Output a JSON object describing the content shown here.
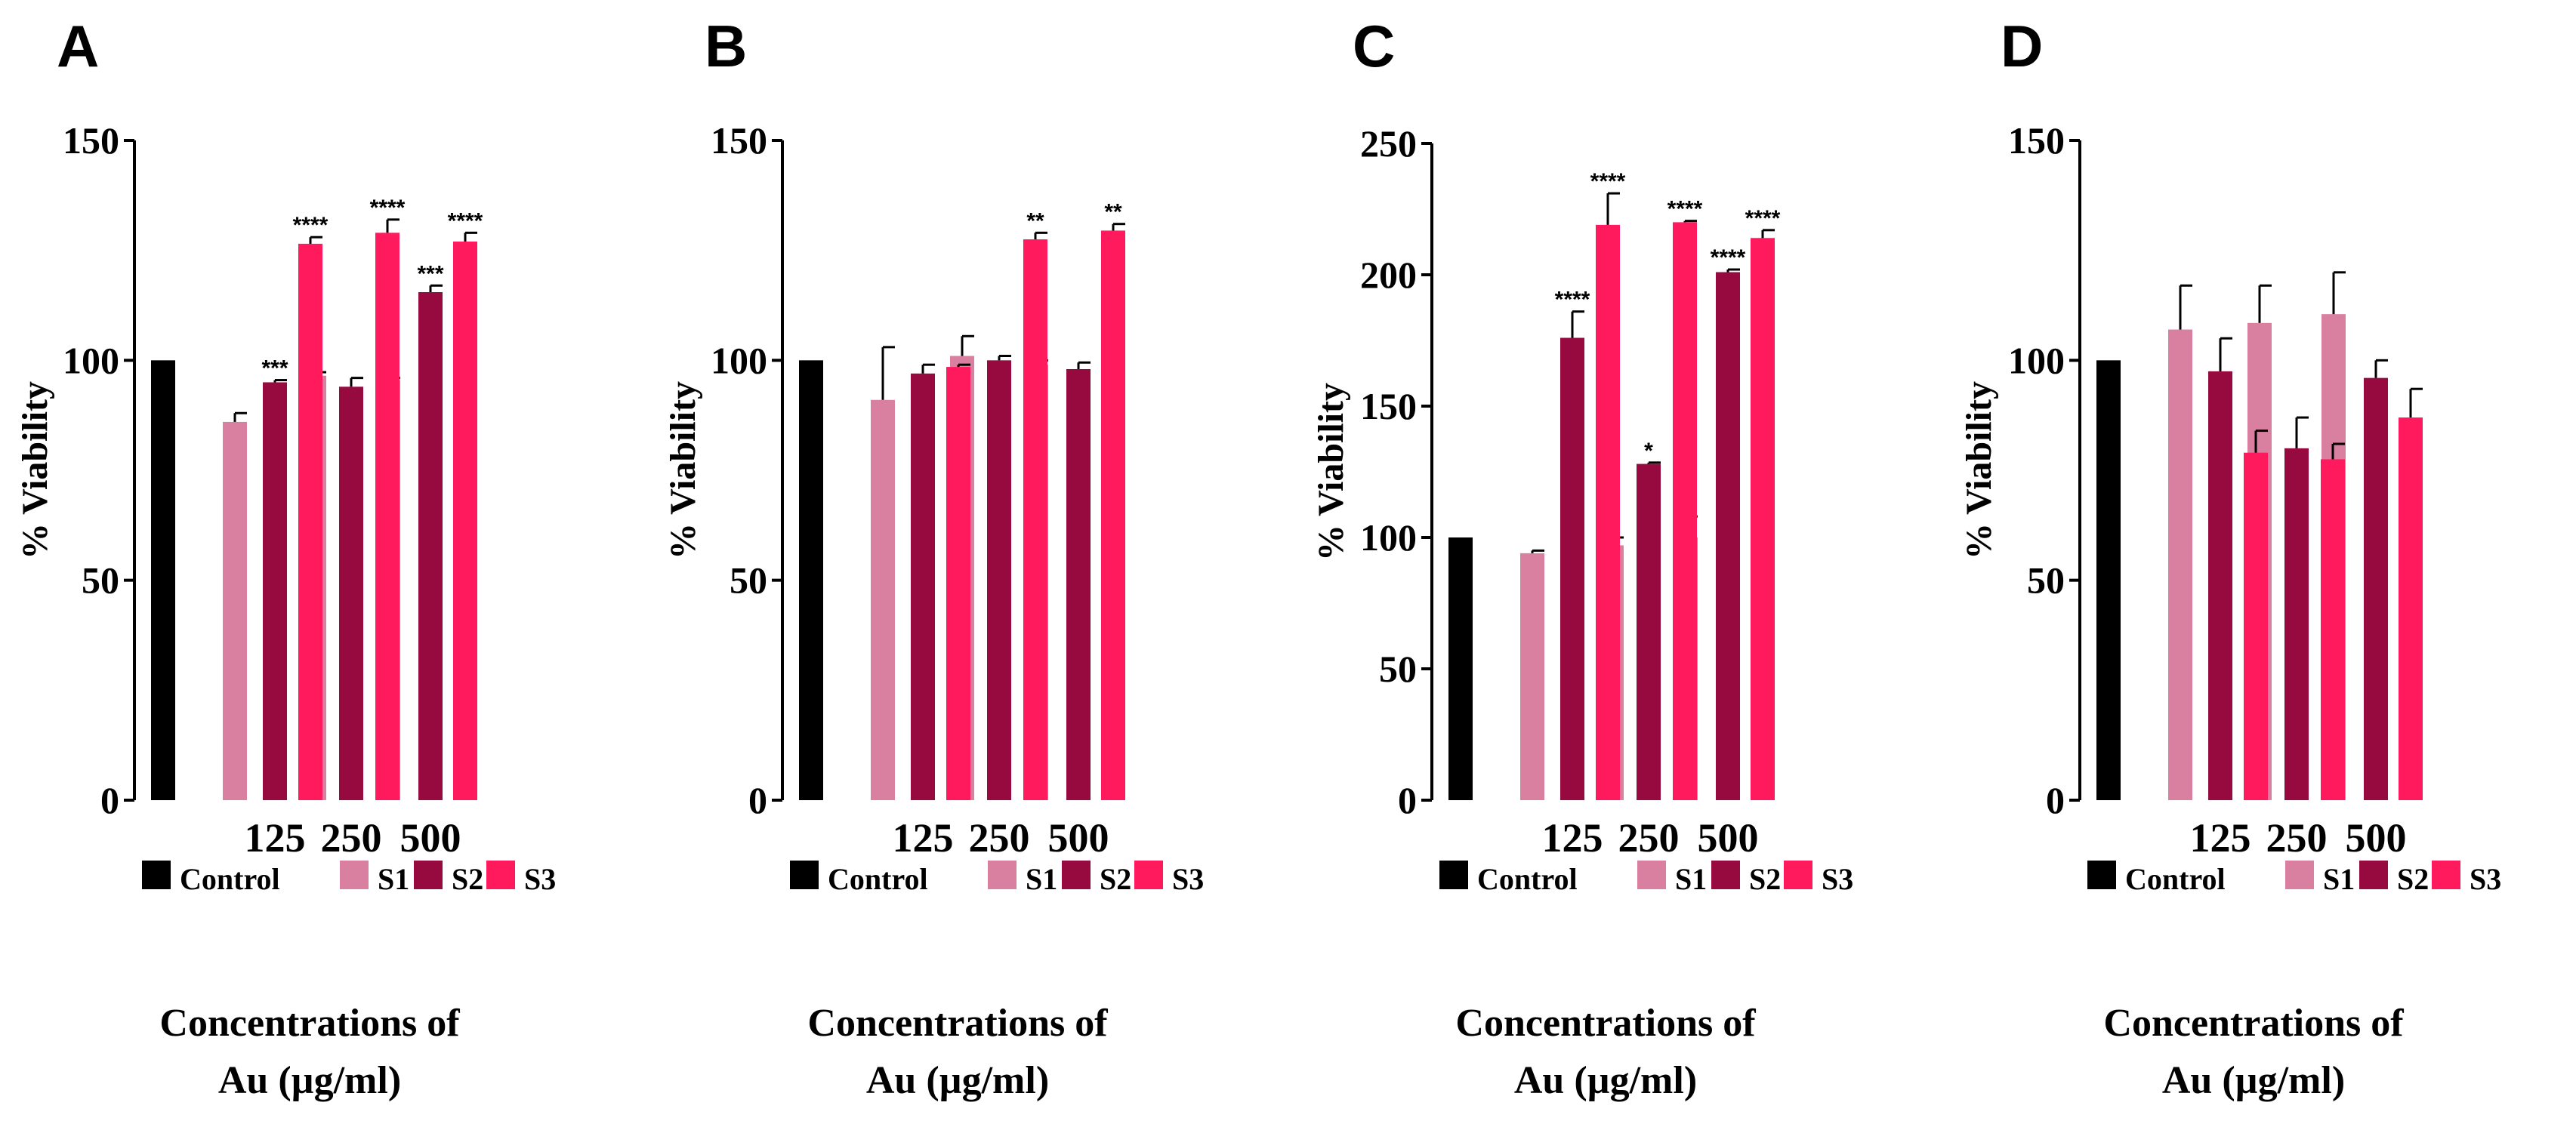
{
  "colors": {
    "Control": "#000000",
    "S1": "#d97fa0",
    "S2": "#960a3f",
    "S3": "#ff1a5e"
  },
  "chart_data": [
    {
      "panel": "A",
      "type": "bar",
      "ylabel": "% Viability",
      "xlabel_lines": [
        "Concentrations of",
        "Au (µg/ml)"
      ],
      "ylim": [
        0,
        150
      ],
      "yticks": [
        0,
        50,
        100,
        150
      ],
      "legend": [
        "Control",
        "S1",
        "S2",
        "S3"
      ],
      "control": {
        "value": 100,
        "error": 0
      },
      "categories": [
        "125",
        "250",
        "500"
      ],
      "series": [
        {
          "name": "S1",
          "values": [
            86,
            96.5,
            95.5
          ],
          "errors": [
            2,
            0.8,
            0.5
          ],
          "sig": [
            "",
            "",
            ""
          ]
        },
        {
          "name": "S2",
          "values": [
            95,
            94,
            115.5
          ],
          "errors": [
            0.5,
            2,
            1.5
          ],
          "sig": [
            "***",
            "",
            "***"
          ]
        },
        {
          "name": "S3",
          "values": [
            126.5,
            129,
            127
          ],
          "errors": [
            1.5,
            3,
            2
          ],
          "sig": [
            "****",
            "****",
            "****"
          ]
        }
      ]
    },
    {
      "panel": "B",
      "type": "bar",
      "ylabel": "% Viability",
      "xlabel_lines": [
        "Concentrations of",
        "Au (µg/ml)"
      ],
      "ylim": [
        0,
        150
      ],
      "yticks": [
        0,
        50,
        100,
        150
      ],
      "legend": [
        "Control",
        "S1",
        "S2",
        "S3"
      ],
      "control": {
        "value": 100,
        "error": 0
      },
      "categories": [
        "125",
        "250",
        "500"
      ],
      "series": [
        {
          "name": "S1",
          "values": [
            91,
            101,
            99
          ],
          "errors": [
            12,
            4.5,
            1
          ],
          "sig": [
            "",
            "",
            ""
          ]
        },
        {
          "name": "S2",
          "values": [
            97,
            100,
            98
          ],
          "errors": [
            2,
            1,
            1.5
          ],
          "sig": [
            "",
            "",
            ""
          ]
        },
        {
          "name": "S3",
          "values": [
            98.5,
            127.5,
            129.5
          ],
          "errors": [
            0.5,
            1.5,
            1.5
          ],
          "sig": [
            "",
            "**",
            "**"
          ]
        }
      ]
    },
    {
      "panel": "C",
      "type": "bar",
      "ylabel": "% Viability",
      "xlabel_lines": [
        "Concentrations of",
        "Au (µg/ml)"
      ],
      "ylim": [
        0,
        250
      ],
      "yticks": [
        0,
        50,
        100,
        150,
        200,
        250
      ],
      "legend": [
        "Control",
        "S1",
        "S2",
        "S3"
      ],
      "control": {
        "value": 100,
        "error": 0
      },
      "categories": [
        "125",
        "250",
        "500"
      ],
      "series": [
        {
          "name": "S1",
          "values": [
            94,
            97,
            100
          ],
          "errors": [
            1,
            3,
            8
          ],
          "sig": [
            "",
            "",
            ""
          ]
        },
        {
          "name": "S2",
          "values": [
            176,
            128,
            201
          ],
          "errors": [
            10,
            0.5,
            1
          ],
          "sig": [
            "****",
            "*",
            "****"
          ]
        },
        {
          "name": "S3",
          "values": [
            219,
            220,
            214
          ],
          "errors": [
            12,
            0.5,
            3
          ],
          "sig": [
            "****",
            "****",
            "****"
          ]
        }
      ]
    },
    {
      "panel": "D",
      "type": "bar",
      "ylabel": "% Viability",
      "xlabel_lines": [
        "Concentrations of",
        "Au (µg/ml)"
      ],
      "ylim": [
        0,
        150
      ],
      "yticks": [
        0,
        50,
        100,
        150
      ],
      "legend": [
        "Control",
        "S1",
        "S2",
        "S3"
      ],
      "control": {
        "value": 100,
        "error": 0
      },
      "categories": [
        "125",
        "250",
        "500"
      ],
      "series": [
        {
          "name": "S1",
          "values": [
            107,
            108.5,
            110.5
          ],
          "errors": [
            10,
            8.5,
            9.5
          ],
          "sig": [
            "",
            "",
            ""
          ]
        },
        {
          "name": "S2",
          "values": [
            97.5,
            80,
            96
          ],
          "errors": [
            7.5,
            7,
            4
          ],
          "sig": [
            "",
            "",
            ""
          ]
        },
        {
          "name": "S3",
          "values": [
            79,
            77.5,
            87
          ],
          "errors": [
            5,
            3.5,
            6.5
          ],
          "sig": [
            "",
            "",
            ""
          ]
        }
      ]
    }
  ]
}
